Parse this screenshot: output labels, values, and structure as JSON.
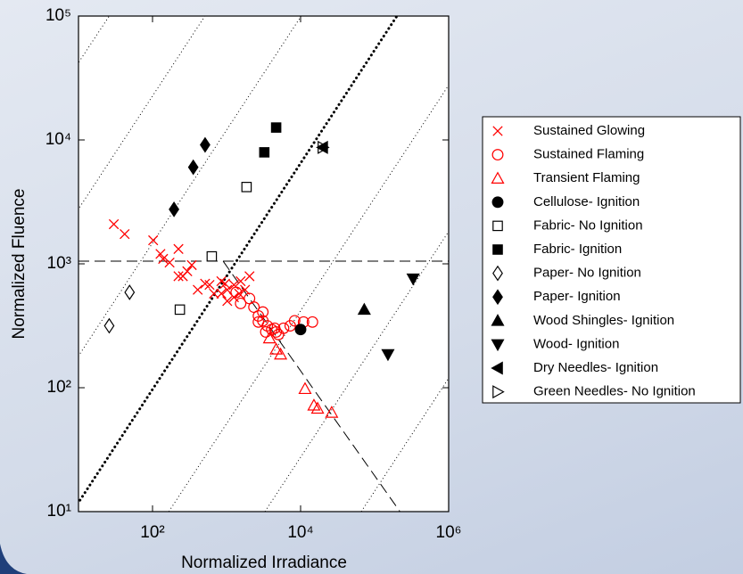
{
  "chart_data": {
    "type": "scatter",
    "x_label": "Normalized Irradiance",
    "y_label": "Normalized Fluence",
    "log_x": true,
    "log_y": true,
    "xlim": [
      10,
      1000000
    ],
    "ylim": [
      10,
      100000
    ],
    "xticks": [
      {
        "value": 100,
        "label": "10²"
      },
      {
        "value": 10000,
        "label": "10⁴"
      },
      {
        "value": 1000000,
        "label": "10⁶"
      }
    ],
    "yticks": [
      {
        "value": 10,
        "label": "10¹"
      },
      {
        "value": 100,
        "label": "10²"
      },
      {
        "value": 1000,
        "label": "10³"
      },
      {
        "value": 10000,
        "label": "10⁴"
      },
      {
        "value": 100000,
        "label": "10⁵"
      }
    ],
    "legend": "right",
    "series": [
      {
        "name": "Sustained Glowing",
        "color": "#ff0000",
        "marker": "x",
        "filled": false,
        "x": [
          30,
          42,
          102,
          128,
          139,
          224,
          170,
          257,
          295,
          339,
          408,
          513,
          589,
          676,
          851,
          955,
          1023,
          1259,
          1479,
          1549,
          1778,
          2042,
          1259,
          851,
          1023,
          224
        ],
        "y": [
          2089,
          1738,
          1549,
          1202,
          1096,
          1318,
          1023,
          794,
          871,
          977,
          617,
          692,
          676,
          575,
          724,
          692,
          617,
          676,
          575,
          724,
          617,
          794,
          537,
          575,
          501,
          794
        ]
      },
      {
        "name": "Sustained Flaming",
        "color": "#ff0000",
        "marker": "o",
        "filled": false,
        "x": [
          1349,
          1549,
          2042,
          2344,
          2692,
          3090,
          3548,
          4074,
          4677,
          5888,
          7244,
          8318,
          10965,
          14454,
          3388,
          4467,
          5012,
          2692,
          3090
        ],
        "y": [
          589,
          479,
          525,
          447,
          380,
          408,
          316,
          295,
          282,
          302,
          316,
          347,
          339,
          339,
          282,
          302,
          269,
          339,
          347
        ]
      },
      {
        "name": "Transient Flaming",
        "color": "#ff0000",
        "marker": "^",
        "filled": false,
        "x": [
          4677,
          5370,
          11482,
          15136,
          16982,
          26303,
          3802
        ],
        "y": [
          204,
          186,
          98,
          72,
          68,
          63,
          251
        ]
      },
      {
        "name": "Cellulose- Ignition",
        "color": "#000000",
        "marker": "o",
        "filled": true,
        "x": [
          10000
        ],
        "y": [
          295
        ]
      },
      {
        "name": "Fabric- No Ignition",
        "color": "#000000",
        "marker": "s",
        "filled": false,
        "x": [
          1862,
          631,
          234
        ],
        "y": [
          4169,
          1148,
          427
        ]
      },
      {
        "name": "Fabric- Ignition",
        "color": "#000000",
        "marker": "s",
        "filled": true,
        "x": [
          3236,
          4677
        ],
        "y": [
          7943,
          12589
        ]
      },
      {
        "name": "Paper- No Ignition",
        "color": "#000000",
        "marker": "d",
        "filled": false,
        "x": [
          26,
          49
        ],
        "y": [
          316,
          589
        ]
      },
      {
        "name": "Paper- Ignition",
        "color": "#000000",
        "marker": "d",
        "filled": true,
        "x": [
          195,
          355,
          513
        ],
        "y": [
          2754,
          6026,
          9120
        ]
      },
      {
        "name": "Wood Shingles- Ignition",
        "color": "#000000",
        "marker": "^",
        "filled": true,
        "x": [
          72444
        ],
        "y": [
          427
        ]
      },
      {
        "name": "Wood- Ignition",
        "color": "#000000",
        "marker": "v",
        "filled": true,
        "x": [
          151356,
          331131
        ],
        "y": [
          186,
          759
        ]
      },
      {
        "name": "Dry Needles- Ignition",
        "color": "#000000",
        "marker": "<",
        "filled": true,
        "x": [
          19953
        ],
        "y": [
          8710
        ]
      },
      {
        "name": "Green Needles- No Ignition",
        "color": "#000000",
        "marker": ">",
        "filled": false,
        "x": [
          19953
        ],
        "y": [
          8710
        ]
      }
    ],
    "reference_lines": [
      {
        "style": "dotted",
        "x": [
          0.001,
          26
        ],
        "y": [
          10,
          100000
        ]
      },
      {
        "style": "dotted",
        "x": [
          0.021,
          510
        ],
        "y": [
          10,
          100000
        ]
      },
      {
        "style": "dotted",
        "x": [
          0.42,
          10200
        ],
        "y": [
          10,
          100000
        ]
      },
      {
        "style": "dotted",
        "x": [
          166,
          4100000
        ],
        "y": [
          10,
          100000
        ]
      },
      {
        "style": "dotted",
        "x": [
          3300,
          81000000
        ],
        "y": [
          10,
          100000
        ]
      },
      {
        "style": "dotted",
        "x": [
          66000,
          1600000000
        ],
        "y": [
          10,
          100000
        ]
      },
      {
        "style": "thick-dotted",
        "x": [
          8.3,
          200000
        ],
        "y": [
          10,
          100000
        ]
      },
      {
        "style": "dashed",
        "x": [
          10,
          1000000
        ],
        "y": [
          1050,
          1050
        ]
      },
      {
        "style": "dashed",
        "x": [
          900,
          220000
        ],
        "y": [
          1050,
          10
        ]
      }
    ]
  }
}
